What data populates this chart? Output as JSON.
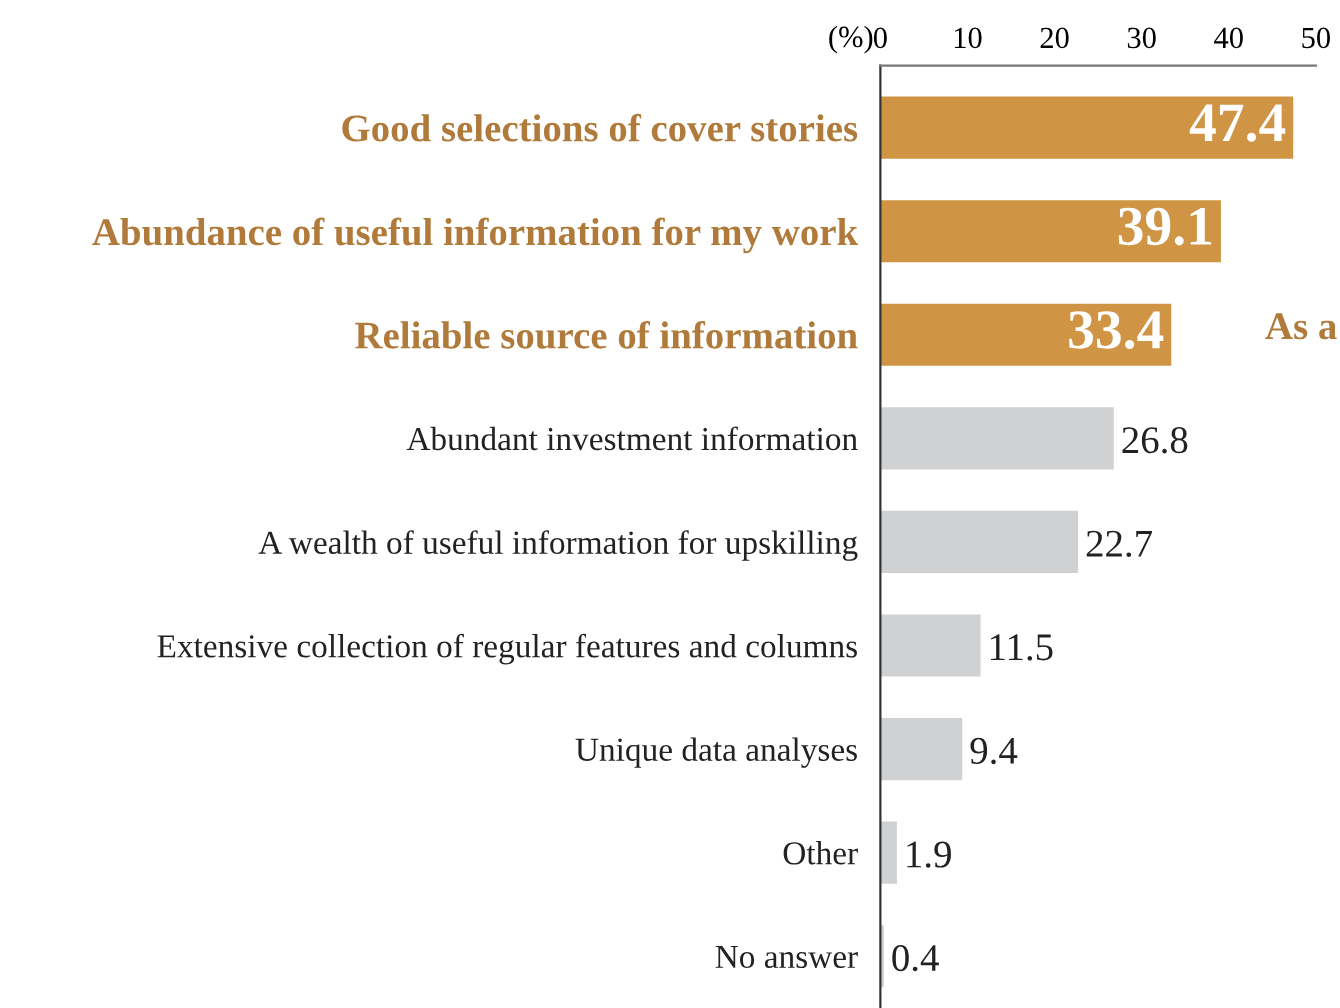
{
  "chart_data": {
    "type": "bar",
    "orientation": "horizontal",
    "xlabel": "(%)",
    "categories": [
      "Good selections of cover stories",
      "Abundance of useful information for my work",
      "Reliable source of information",
      "Abundant investment information",
      "A wealth of useful information for upskilling",
      "Extensive collection of regular features and columns",
      "Unique data analyses",
      "Other",
      "No answer"
    ],
    "values": [
      47.4,
      39.1,
      33.4,
      26.8,
      22.7,
      11.5,
      9.4,
      1.9,
      0.4
    ],
    "colors": [
      "#d09445",
      "#d09445",
      "#d09445",
      "#d0d1d3",
      "#d0d1d3",
      "#d0d1d3",
      "#d0d1d3",
      "#d0d1d3",
      "#d0d1d3"
    ],
    "xlim": [
      0,
      50
    ],
    "xticks": [
      0,
      10,
      20,
      30,
      40,
      50
    ],
    "data_labels": true,
    "grid": false,
    "annotations": [
      "As a"
    ]
  }
}
